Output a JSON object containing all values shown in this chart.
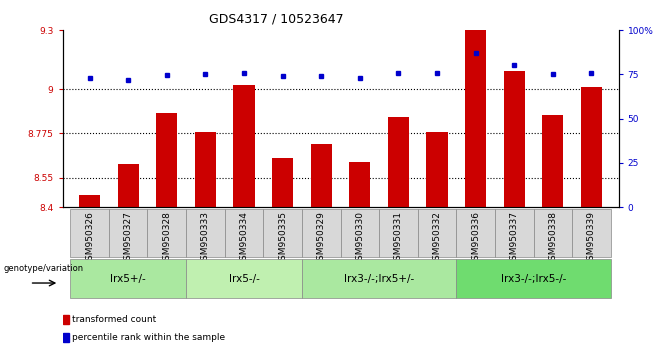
{
  "title": "GDS4317 / 10523647",
  "samples": [
    "GSM950326",
    "GSM950327",
    "GSM950328",
    "GSM950333",
    "GSM950334",
    "GSM950335",
    "GSM950329",
    "GSM950330",
    "GSM950331",
    "GSM950332",
    "GSM950336",
    "GSM950337",
    "GSM950338",
    "GSM950339"
  ],
  "red_values": [
    8.46,
    8.62,
    8.88,
    8.78,
    9.02,
    8.65,
    8.72,
    8.63,
    8.86,
    8.78,
    9.3,
    9.09,
    8.87,
    9.01
  ],
  "blue_values": [
    73,
    72,
    74.5,
    75,
    76,
    74,
    74,
    73,
    75.5,
    76,
    87,
    80,
    75,
    76
  ],
  "ylim_left": [
    8.4,
    9.3
  ],
  "ylim_right": [
    0,
    100
  ],
  "yticks_left": [
    8.4,
    8.55,
    8.775,
    9.0,
    9.3
  ],
  "yticks_right": [
    0,
    25,
    50,
    75,
    100
  ],
  "ytick_labels_left": [
    "8.4",
    "8.55",
    "8.775",
    "9",
    "9.3"
  ],
  "ytick_labels_right": [
    "0",
    "25",
    "50",
    "75",
    "100%"
  ],
  "hlines": [
    9.0,
    8.775,
    8.55
  ],
  "group_boundaries": [
    0,
    3,
    6,
    10,
    14
  ],
  "group_labels": [
    "lrx5+/-",
    "lrx5-/-",
    "lrx3-/-;lrx5+/-",
    "lrx3-/-;lrx5-/-"
  ],
  "group_fill_colors": [
    "#aae8a0",
    "#c0f0b0",
    "#aae8a0",
    "#6fdc6f"
  ],
  "bar_color": "#CC0000",
  "dot_color": "#0000CC",
  "bar_width": 0.55,
  "legend_items": [
    {
      "color": "#CC0000",
      "label": "transformed count"
    },
    {
      "color": "#0000CC",
      "label": "percentile rank within the sample"
    }
  ],
  "genotype_label": "genotype/variation",
  "title_fontsize": 9,
  "tick_fontsize": 6.5,
  "label_fontsize": 6.5,
  "group_fontsize": 7.5
}
